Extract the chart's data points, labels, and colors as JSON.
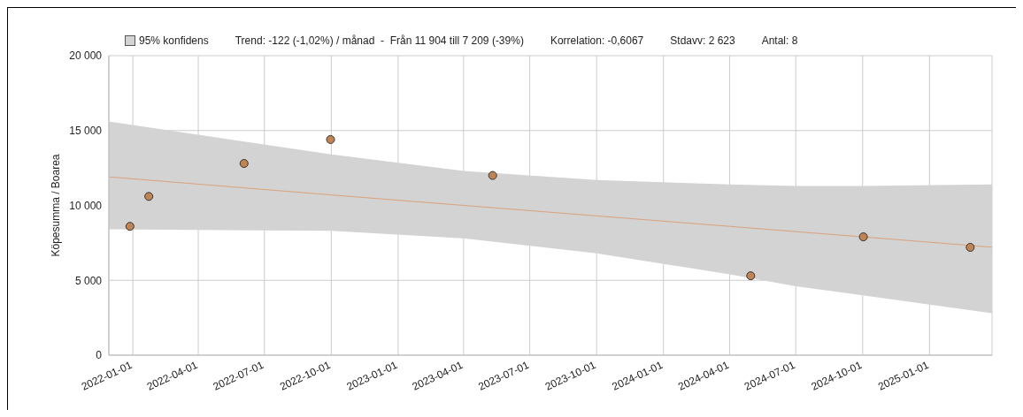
{
  "chart_data": {
    "type": "scatter",
    "ylabel": "Köpesumma / Boarea",
    "annotations": [
      "95% konfidens",
      "Korrelation: -0,6067",
      "Stdavv: 2 623",
      "Antal: 8"
    ],
    "series": [
      {
        "color": "#c08454",
        "marker": "circle",
        "x": [
          "2021-12-28",
          "2022-01-23",
          "2022-06-03",
          "2022-09-30",
          "2023-05-11",
          "2024-04-30",
          "2024-10-02",
          "2025-02-26"
        ],
        "values": [
          8600,
          10600,
          12800,
          14400,
          12000,
          5300,
          7900,
          7200
        ]
      },
      {
        "type": "line",
        "name": "Trend: -122 (-1,02%) / månad  -  Från 11 904 till 7 209 (-39%)",
        "color": "#d9a27a",
        "line_style": "solid",
        "x": [
          "2021-11-29",
          "2022-10-01",
          "2023-04-01",
          "2023-10-01",
          "2024-04-01",
          "2024-07-01",
          "2024-10-01",
          "2025-03-28"
        ],
        "values": [
          11904,
          10700,
          10000,
          9300,
          8600,
          8250,
          7900,
          7209
        ],
        "lower": [
          8400,
          8300,
          7800,
          6800,
          5400,
          4600,
          4000,
          2800
        ],
        "upper": [
          15600,
          13400,
          12300,
          11700,
          11400,
          11300,
          11300,
          11400
        ]
      }
    ],
    "xlim": [
      "2021-11-29",
      "2025-03-28"
    ],
    "xticks": [
      "2022-01-01",
      "2022-04-01",
      "2022-07-01",
      "2022-10-01",
      "2023-01-01",
      "2023-04-01",
      "2023-07-01",
      "2023-10-01",
      "2024-01-01",
      "2024-04-01",
      "2024-07-01",
      "2024-10-01",
      "2025-01-01"
    ],
    "ylim": [
      0,
      20000
    ],
    "yticks": [
      {
        "value": 0,
        "label": "0"
      },
      {
        "value": 5000,
        "label": "5 000"
      },
      {
        "value": 10000,
        "label": "10 000"
      },
      {
        "value": 15000,
        "label": "15 000"
      },
      {
        "value": 20000,
        "label": "20 000"
      }
    ],
    "grid": true,
    "legend": "top"
  }
}
